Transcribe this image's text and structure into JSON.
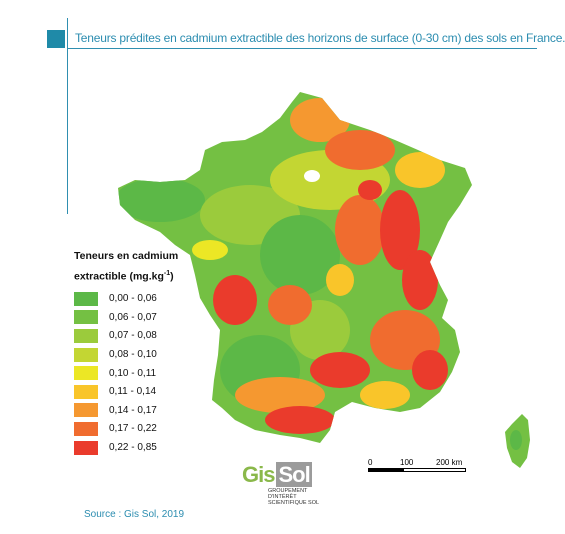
{
  "title": "Teneurs prédites en cadmium extractible des horizons de surface (0-30 cm) des sols en France.",
  "legend": {
    "title_line1": "Teneurs en cadmium",
    "title_line2": "extractible (mg.kg",
    "title_sup": "-1",
    "title_end": ")",
    "classes": [
      {
        "label": "0,00 - 0,06",
        "color": "#5cb847"
      },
      {
        "label": "0,06 - 0,07",
        "color": "#74c043"
      },
      {
        "label": "0,07 - 0,08",
        "color": "#9bcb3c"
      },
      {
        "label": "0,08 - 0,10",
        "color": "#c3d633"
      },
      {
        "label": "0,10 - 0,11",
        "color": "#ece725"
      },
      {
        "label": "0,11 - 0,14",
        "color": "#f9c52a"
      },
      {
        "label": "0,14 - 0,17",
        "color": "#f59830"
      },
      {
        "label": "0,17 - 0,22",
        "color": "#f06c2f"
      },
      {
        "label": "0,22 - 0,85",
        "color": "#ea3b2c"
      }
    ]
  },
  "scale": {
    "labels": [
      "0",
      "100",
      "200 km"
    ]
  },
  "logo": {
    "main": "Gis",
    "sol": "Sol",
    "sub1": "GROUPEMENT",
    "sub2": "D'INTÉRÊT",
    "sub3": "SCIENTIFIQUE SOL"
  },
  "source": "Source : Gis Sol, 2019",
  "colors": {
    "accent": "#2c8db0"
  }
}
